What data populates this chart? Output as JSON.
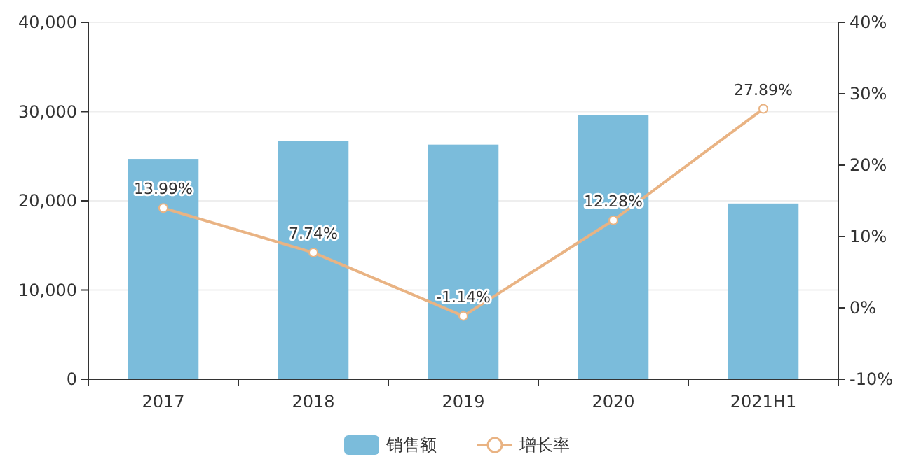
{
  "chart_data": {
    "type": "bar",
    "categories": [
      "2017",
      "2018",
      "2019",
      "2020",
      "2021H1"
    ],
    "series": [
      {
        "name": "销售额",
        "color": "#7bbcdb",
        "values": [
          24700,
          26700,
          26300,
          29600,
          19700
        ]
      },
      {
        "name": "增长率",
        "type": "line",
        "axis": "y2",
        "color": "#e9b383",
        "marker": "circle",
        "values": [
          13.99,
          7.74,
          -1.14,
          12.28,
          27.89
        ],
        "value_labels": [
          "13.99%",
          "7.74%",
          "-1.14%",
          "12.28%",
          "27.89%"
        ]
      }
    ],
    "ylim": [
      0,
      40000
    ],
    "yticks": [
      0,
      {
        "value": 10000,
        "label": "10,000"
      },
      {
        "value": 20000,
        "label": "20,000"
      },
      {
        "value": 30000,
        "label": "30,000"
      },
      {
        "value": 40000,
        "label": "40,000"
      }
    ],
    "y2lim": [
      -10,
      40
    ],
    "y2ticks": [
      {
        "value": -10,
        "label": "-10%"
      },
      {
        "value": 0,
        "label": "0%"
      },
      {
        "value": 10,
        "label": "10%"
      },
      {
        "value": 20,
        "label": "20%"
      },
      {
        "value": 30,
        "label": "30%"
      },
      {
        "value": 40,
        "label": "40%"
      }
    ],
    "grid": "y",
    "legend": "bottom"
  }
}
